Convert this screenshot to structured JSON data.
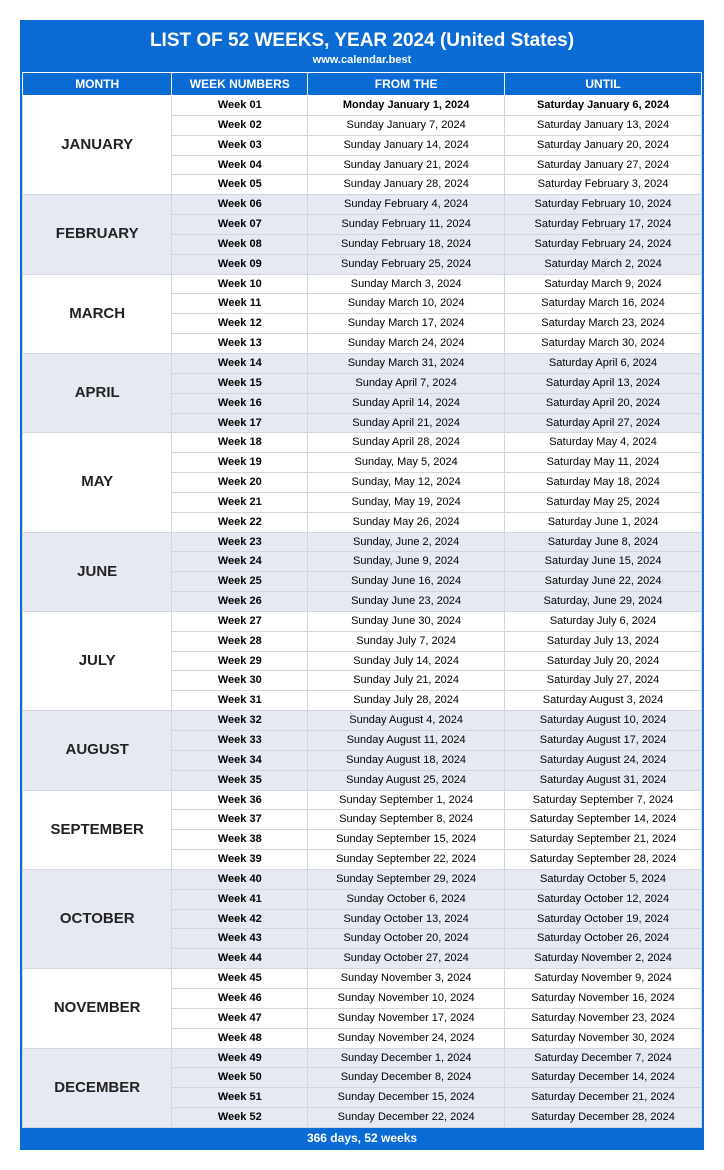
{
  "header": {
    "title": "LIST OF 52 WEEKS, YEAR 2024 (United States)",
    "subtitle": "www.calendar.best"
  },
  "columns": {
    "month": "MONTH",
    "week": "WEEK NUMBERS",
    "from": "FROM THE",
    "until": "UNTIL"
  },
  "footer": "366 days, 52 weeks",
  "colors": {
    "header_bg": "#0a6bd4",
    "header_text": "#ffffff",
    "shade_bg": "#e6e9f2",
    "plain_bg": "#ffffff",
    "border": "#cfd6e0"
  },
  "months": [
    {
      "name": "JANUARY",
      "shaded": false,
      "weeks": [
        {
          "num": "Week 01",
          "from": "Monday January 1, 2024",
          "until": "Saturday January 6, 2024",
          "bold": true
        },
        {
          "num": "Week 02",
          "from": "Sunday January 7, 2024",
          "until": "Saturday January 13, 2024"
        },
        {
          "num": "Week 03",
          "from": "Sunday January 14, 2024",
          "until": "Saturday January 20, 2024"
        },
        {
          "num": "Week 04",
          "from": "Sunday January 21, 2024",
          "until": "Saturday January 27, 2024"
        },
        {
          "num": "Week 05",
          "from": "Sunday January 28, 2024",
          "until": "Saturday February 3, 2024"
        }
      ]
    },
    {
      "name": "FEBRUARY",
      "shaded": true,
      "weeks": [
        {
          "num": "Week 06",
          "from": "Sunday February 4, 2024",
          "until": "Saturday February 10, 2024"
        },
        {
          "num": "Week 07",
          "from": "Sunday February 11, 2024",
          "until": "Saturday February 17, 2024"
        },
        {
          "num": "Week 08",
          "from": "Sunday February 18, 2024",
          "until": "Saturday February 24, 2024"
        },
        {
          "num": "Week 09",
          "from": "Sunday February 25, 2024",
          "until": "Saturday March 2, 2024"
        }
      ]
    },
    {
      "name": "MARCH",
      "shaded": false,
      "weeks": [
        {
          "num": "Week 10",
          "from": "Sunday March 3, 2024",
          "until": "Saturday March 9, 2024"
        },
        {
          "num": "Week 11",
          "from": "Sunday March 10, 2024",
          "until": "Saturday March 16, 2024"
        },
        {
          "num": "Week 12",
          "from": "Sunday March 17, 2024",
          "until": "Saturday March 23, 2024"
        },
        {
          "num": "Week 13",
          "from": "Sunday March 24, 2024",
          "until": "Saturday March 30, 2024"
        }
      ]
    },
    {
      "name": "APRIL",
      "shaded": true,
      "weeks": [
        {
          "num": "Week 14",
          "from": "Sunday March 31, 2024",
          "until": "Saturday April 6, 2024"
        },
        {
          "num": "Week 15",
          "from": "Sunday April 7, 2024",
          "until": "Saturday April 13, 2024"
        },
        {
          "num": "Week 16",
          "from": "Sunday April 14, 2024",
          "until": "Saturday April 20, 2024"
        },
        {
          "num": "Week 17",
          "from": "Sunday April 21, 2024",
          "until": "Saturday April 27, 2024"
        }
      ]
    },
    {
      "name": "MAY",
      "shaded": false,
      "weeks": [
        {
          "num": "Week 18",
          "from": "Sunday April 28, 2024",
          "until": "Saturday May 4, 2024"
        },
        {
          "num": "Week 19",
          "from": "Sunday, May 5, 2024",
          "until": "Saturday May 11, 2024"
        },
        {
          "num": "Week 20",
          "from": "Sunday, May 12, 2024",
          "until": "Saturday May 18, 2024"
        },
        {
          "num": "Week 21",
          "from": "Sunday, May 19, 2024",
          "until": "Saturday May 25, 2024"
        },
        {
          "num": "Week 22",
          "from": "Sunday May 26, 2024",
          "until": "Saturday June 1, 2024"
        }
      ]
    },
    {
      "name": "JUNE",
      "shaded": true,
      "weeks": [
        {
          "num": "Week 23",
          "from": "Sunday, June 2, 2024",
          "until": "Saturday June 8, 2024"
        },
        {
          "num": "Week 24",
          "from": "Sunday, June 9, 2024",
          "until": "Saturday June 15, 2024"
        },
        {
          "num": "Week 25",
          "from": "Sunday June 16, 2024",
          "until": "Saturday June 22, 2024"
        },
        {
          "num": "Week 26",
          "from": "Sunday June 23, 2024",
          "until": "Saturday, June 29, 2024"
        }
      ]
    },
    {
      "name": "JULY",
      "shaded": false,
      "weeks": [
        {
          "num": "Week 27",
          "from": "Sunday June 30, 2024",
          "until": "Saturday July 6, 2024"
        },
        {
          "num": "Week 28",
          "from": "Sunday July 7, 2024",
          "until": "Saturday July 13, 2024"
        },
        {
          "num": "Week 29",
          "from": "Sunday July 14, 2024",
          "until": "Saturday July 20, 2024"
        },
        {
          "num": "Week 30",
          "from": "Sunday July 21, 2024",
          "until": "Saturday July 27, 2024"
        },
        {
          "num": "Week 31",
          "from": "Sunday July 28, 2024",
          "until": "Saturday August 3, 2024"
        }
      ]
    },
    {
      "name": "AUGUST",
      "shaded": true,
      "weeks": [
        {
          "num": "Week 32",
          "from": "Sunday August 4, 2024",
          "until": "Saturday August 10, 2024"
        },
        {
          "num": "Week 33",
          "from": "Sunday August 11, 2024",
          "until": "Saturday August 17, 2024"
        },
        {
          "num": "Week 34",
          "from": "Sunday August 18, 2024",
          "until": "Saturday August 24, 2024"
        },
        {
          "num": "Week 35",
          "from": "Sunday August 25, 2024",
          "until": "Saturday August 31, 2024"
        }
      ]
    },
    {
      "name": "SEPTEMBER",
      "shaded": false,
      "weeks": [
        {
          "num": "Week 36",
          "from": "Sunday September 1, 2024",
          "until": "Saturday September 7, 2024"
        },
        {
          "num": "Week 37",
          "from": "Sunday September 8, 2024",
          "until": "Saturday September 14, 2024"
        },
        {
          "num": "Week 38",
          "from": "Sunday September 15, 2024",
          "until": "Saturday September 21, 2024"
        },
        {
          "num": "Week 39",
          "from": "Sunday September 22, 2024",
          "until": "Saturday September 28, 2024"
        }
      ]
    },
    {
      "name": "OCTOBER",
      "shaded": true,
      "weeks": [
        {
          "num": "Week 40",
          "from": "Sunday September 29, 2024",
          "until": "Saturday October 5, 2024"
        },
        {
          "num": "Week 41",
          "from": "Sunday October 6, 2024",
          "until": "Saturday October 12, 2024"
        },
        {
          "num": "Week 42",
          "from": "Sunday October 13, 2024",
          "until": "Saturday October 19, 2024"
        },
        {
          "num": "Week 43",
          "from": "Sunday October 20, 2024",
          "until": "Saturday October 26, 2024"
        },
        {
          "num": "Week 44",
          "from": "Sunday October 27, 2024",
          "until": "Saturday November 2, 2024"
        }
      ]
    },
    {
      "name": "NOVEMBER",
      "shaded": false,
      "weeks": [
        {
          "num": "Week 45",
          "from": "Sunday November 3, 2024",
          "until": "Saturday November 9, 2024"
        },
        {
          "num": "Week 46",
          "from": "Sunday November 10, 2024",
          "until": "Saturday November 16, 2024"
        },
        {
          "num": "Week 47",
          "from": "Sunday November 17, 2024",
          "until": "Saturday November 23, 2024"
        },
        {
          "num": "Week 48",
          "from": "Sunday November 24, 2024",
          "until": "Saturday November 30, 2024"
        }
      ]
    },
    {
      "name": "DECEMBER",
      "shaded": true,
      "weeks": [
        {
          "num": "Week 49",
          "from": "Sunday December 1, 2024",
          "until": "Saturday December 7, 2024"
        },
        {
          "num": "Week 50",
          "from": "Sunday December 8, 2024",
          "until": "Saturday December 14, 2024"
        },
        {
          "num": "Week 51",
          "from": "Sunday December 15, 2024",
          "until": "Saturday December 21, 2024"
        },
        {
          "num": "Week 52",
          "from": "Sunday December 22, 2024",
          "until": "Saturday December 28, 2024"
        }
      ]
    }
  ]
}
